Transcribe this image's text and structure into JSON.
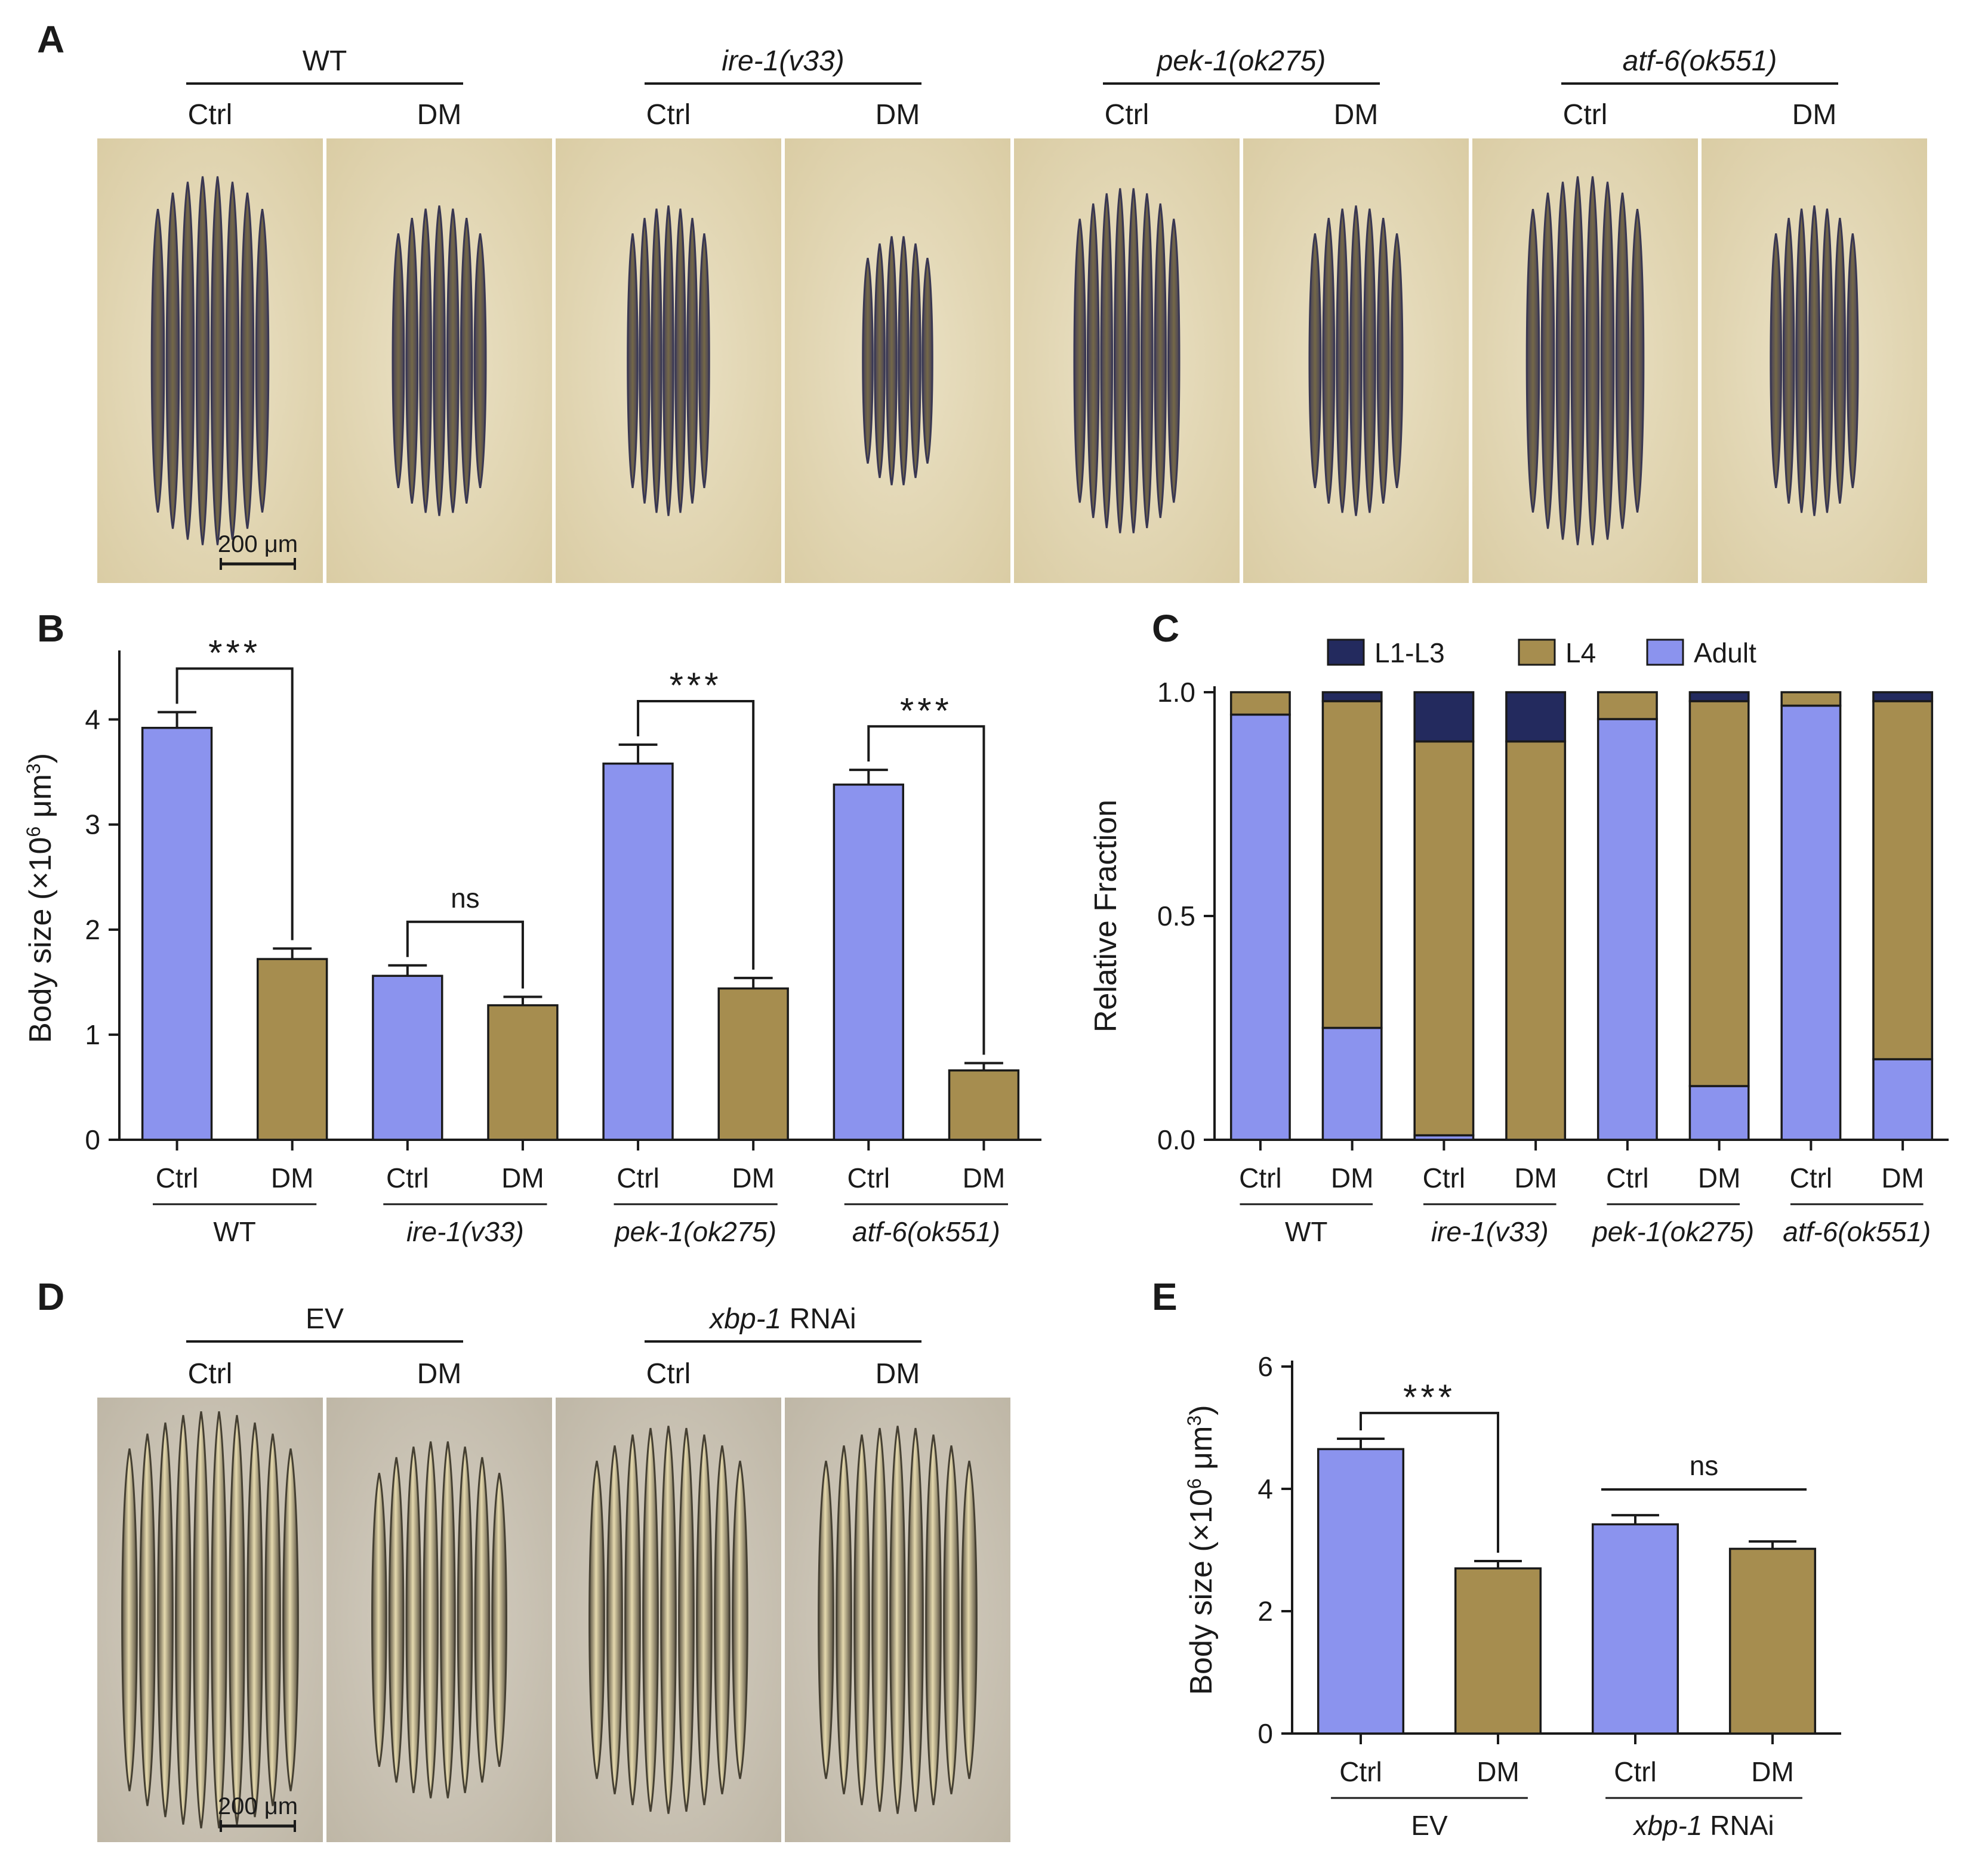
{
  "colors": {
    "ctrl": "#8b93ee",
    "dm": "#a68d4f",
    "l1l3": "#232a5e",
    "l4": "#a68d4f",
    "adult": "#8b93ee",
    "axis": "#1a1a1a",
    "photo_bg_A": "#e7dcbd",
    "photo_bg_D": "#cdc6b8"
  },
  "panel_A": {
    "label": "A",
    "groups": [
      {
        "name": "WT",
        "italic": false
      },
      {
        "name": "ire-1(v33)",
        "italic": true
      },
      {
        "name": "pek-1(ok275)",
        "italic": true
      },
      {
        "name": "atf-6(ok551)",
        "italic": true
      }
    ],
    "conditions": [
      "Ctrl",
      "DM"
    ],
    "scale_bar": "200 μm"
  },
  "panel_D": {
    "label": "D",
    "groups": [
      {
        "name": "EV",
        "italic_part": "",
        "plain_part": "EV"
      },
      {
        "name": "xbp-1 RNAi",
        "italic_part": "xbp-1",
        "plain_part": " RNAi"
      }
    ],
    "conditions": [
      "Ctrl",
      "DM"
    ],
    "scale_bar": "200 μm"
  },
  "chart_data": [
    {
      "panel": "B",
      "type": "bar",
      "ylabel_main": "Body size (×10",
      "ylabel_sup1": "6",
      "ylabel_mid": " μm",
      "ylabel_sup2": "3",
      "ylabel_end": ")",
      "ylim": [
        0,
        4.6
      ],
      "yticks": [
        0,
        1,
        2,
        3,
        4
      ],
      "groups": [
        "WT",
        "ire-1(v33)",
        "pek-1(ok275)",
        "atf-6(ok551)"
      ],
      "categories": [
        "Ctrl",
        "DM",
        "Ctrl",
        "DM",
        "Ctrl",
        "DM",
        "Ctrl",
        "DM"
      ],
      "values": [
        3.92,
        1.72,
        1.56,
        1.28,
        3.58,
        1.44,
        3.38,
        0.66
      ],
      "errors": [
        0.15,
        0.1,
        0.1,
        0.08,
        0.18,
        0.1,
        0.14,
        0.07
      ],
      "significance": [
        {
          "pair": [
            0,
            1
          ],
          "label": "***"
        },
        {
          "pair": [
            2,
            3
          ],
          "label": "ns"
        },
        {
          "pair": [
            4,
            5
          ],
          "label": "***"
        },
        {
          "pair": [
            6,
            7
          ],
          "label": "***"
        }
      ]
    },
    {
      "panel": "C",
      "type": "bar",
      "stacked": true,
      "ylabel": "Relative Fraction",
      "ylim": [
        0,
        1.0
      ],
      "yticks": [
        "0.0",
        "0.5",
        "1.0"
      ],
      "groups": [
        "WT",
        "ire-1(v33)",
        "pek-1(ok275)",
        "atf-6(ok551)"
      ],
      "categories": [
        "Ctrl",
        "DM",
        "Ctrl",
        "DM",
        "Ctrl",
        "DM",
        "Ctrl",
        "DM"
      ],
      "legend": [
        "L1-L3",
        "L4",
        "Adult"
      ],
      "legend_position": "top",
      "series": [
        {
          "name": "Adult",
          "values": [
            0.95,
            0.25,
            0.01,
            0.0,
            0.94,
            0.12,
            0.97,
            0.18
          ]
        },
        {
          "name": "L4",
          "values": [
            0.05,
            0.73,
            0.88,
            0.89,
            0.06,
            0.86,
            0.03,
            0.8
          ]
        },
        {
          "name": "L1-L3",
          "values": [
            0.0,
            0.02,
            0.11,
            0.11,
            0.0,
            0.02,
            0.0,
            0.02
          ]
        }
      ]
    },
    {
      "panel": "E",
      "type": "bar",
      "ylabel_main": "Body size (×10",
      "ylabel_sup1": "6",
      "ylabel_mid": " μm",
      "ylabel_sup2": "3",
      "ylabel_end": ")",
      "ylim": [
        0,
        6
      ],
      "yticks": [
        0,
        2,
        4,
        6
      ],
      "groups": [
        "EV",
        "xbp-1 RNAi"
      ],
      "categories": [
        "Ctrl",
        "DM",
        "Ctrl",
        "DM"
      ],
      "values": [
        4.65,
        2.7,
        3.42,
        3.02
      ],
      "errors": [
        0.17,
        0.12,
        0.15,
        0.12
      ],
      "significance": [
        {
          "pair": [
            0,
            1
          ],
          "label": "***",
          "style": "bracket"
        },
        {
          "pair": [
            2,
            3
          ],
          "label": "ns",
          "style": "line"
        }
      ]
    }
  ]
}
